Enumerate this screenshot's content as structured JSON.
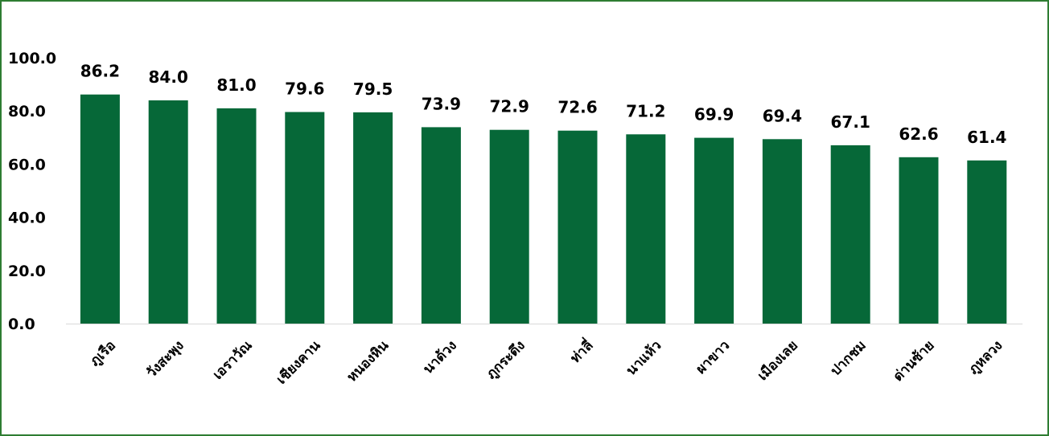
{
  "chart_data": {
    "type": "bar",
    "categories": [
      "ภูเรือ",
      "วังสะพุง",
      "เอราวัณ",
      "เชียงคาน",
      "หนองหิน",
      "นาด้วง",
      "ภูกระดึง",
      "ท่าลี่",
      "นาแห้ว",
      "ผาขาว",
      "เมืองเลย",
      "ปากชม",
      "ด่านซ้าย",
      "ภูหลวง"
    ],
    "values": [
      86.2,
      84.0,
      81.0,
      79.6,
      79.5,
      73.9,
      72.9,
      72.6,
      71.2,
      69.9,
      69.4,
      67.1,
      62.6,
      61.4
    ],
    "value_labels": [
      "86.2",
      "84.0",
      "81.0",
      "79.6",
      "79.5",
      "73.9",
      "72.9",
      "72.6",
      "71.2",
      "69.9",
      "69.4",
      "67.1",
      "62.6",
      "61.4"
    ],
    "yticks": [
      "0.0",
      "20.0",
      "40.0",
      "60.0",
      "80.0",
      "100.0"
    ],
    "ylim": [
      0,
      100
    ],
    "title": "",
    "xlabel": "",
    "ylabel": "",
    "grid": false,
    "legend": "none",
    "bar_color": "#066838",
    "frame_color": "#2e7d32"
  }
}
